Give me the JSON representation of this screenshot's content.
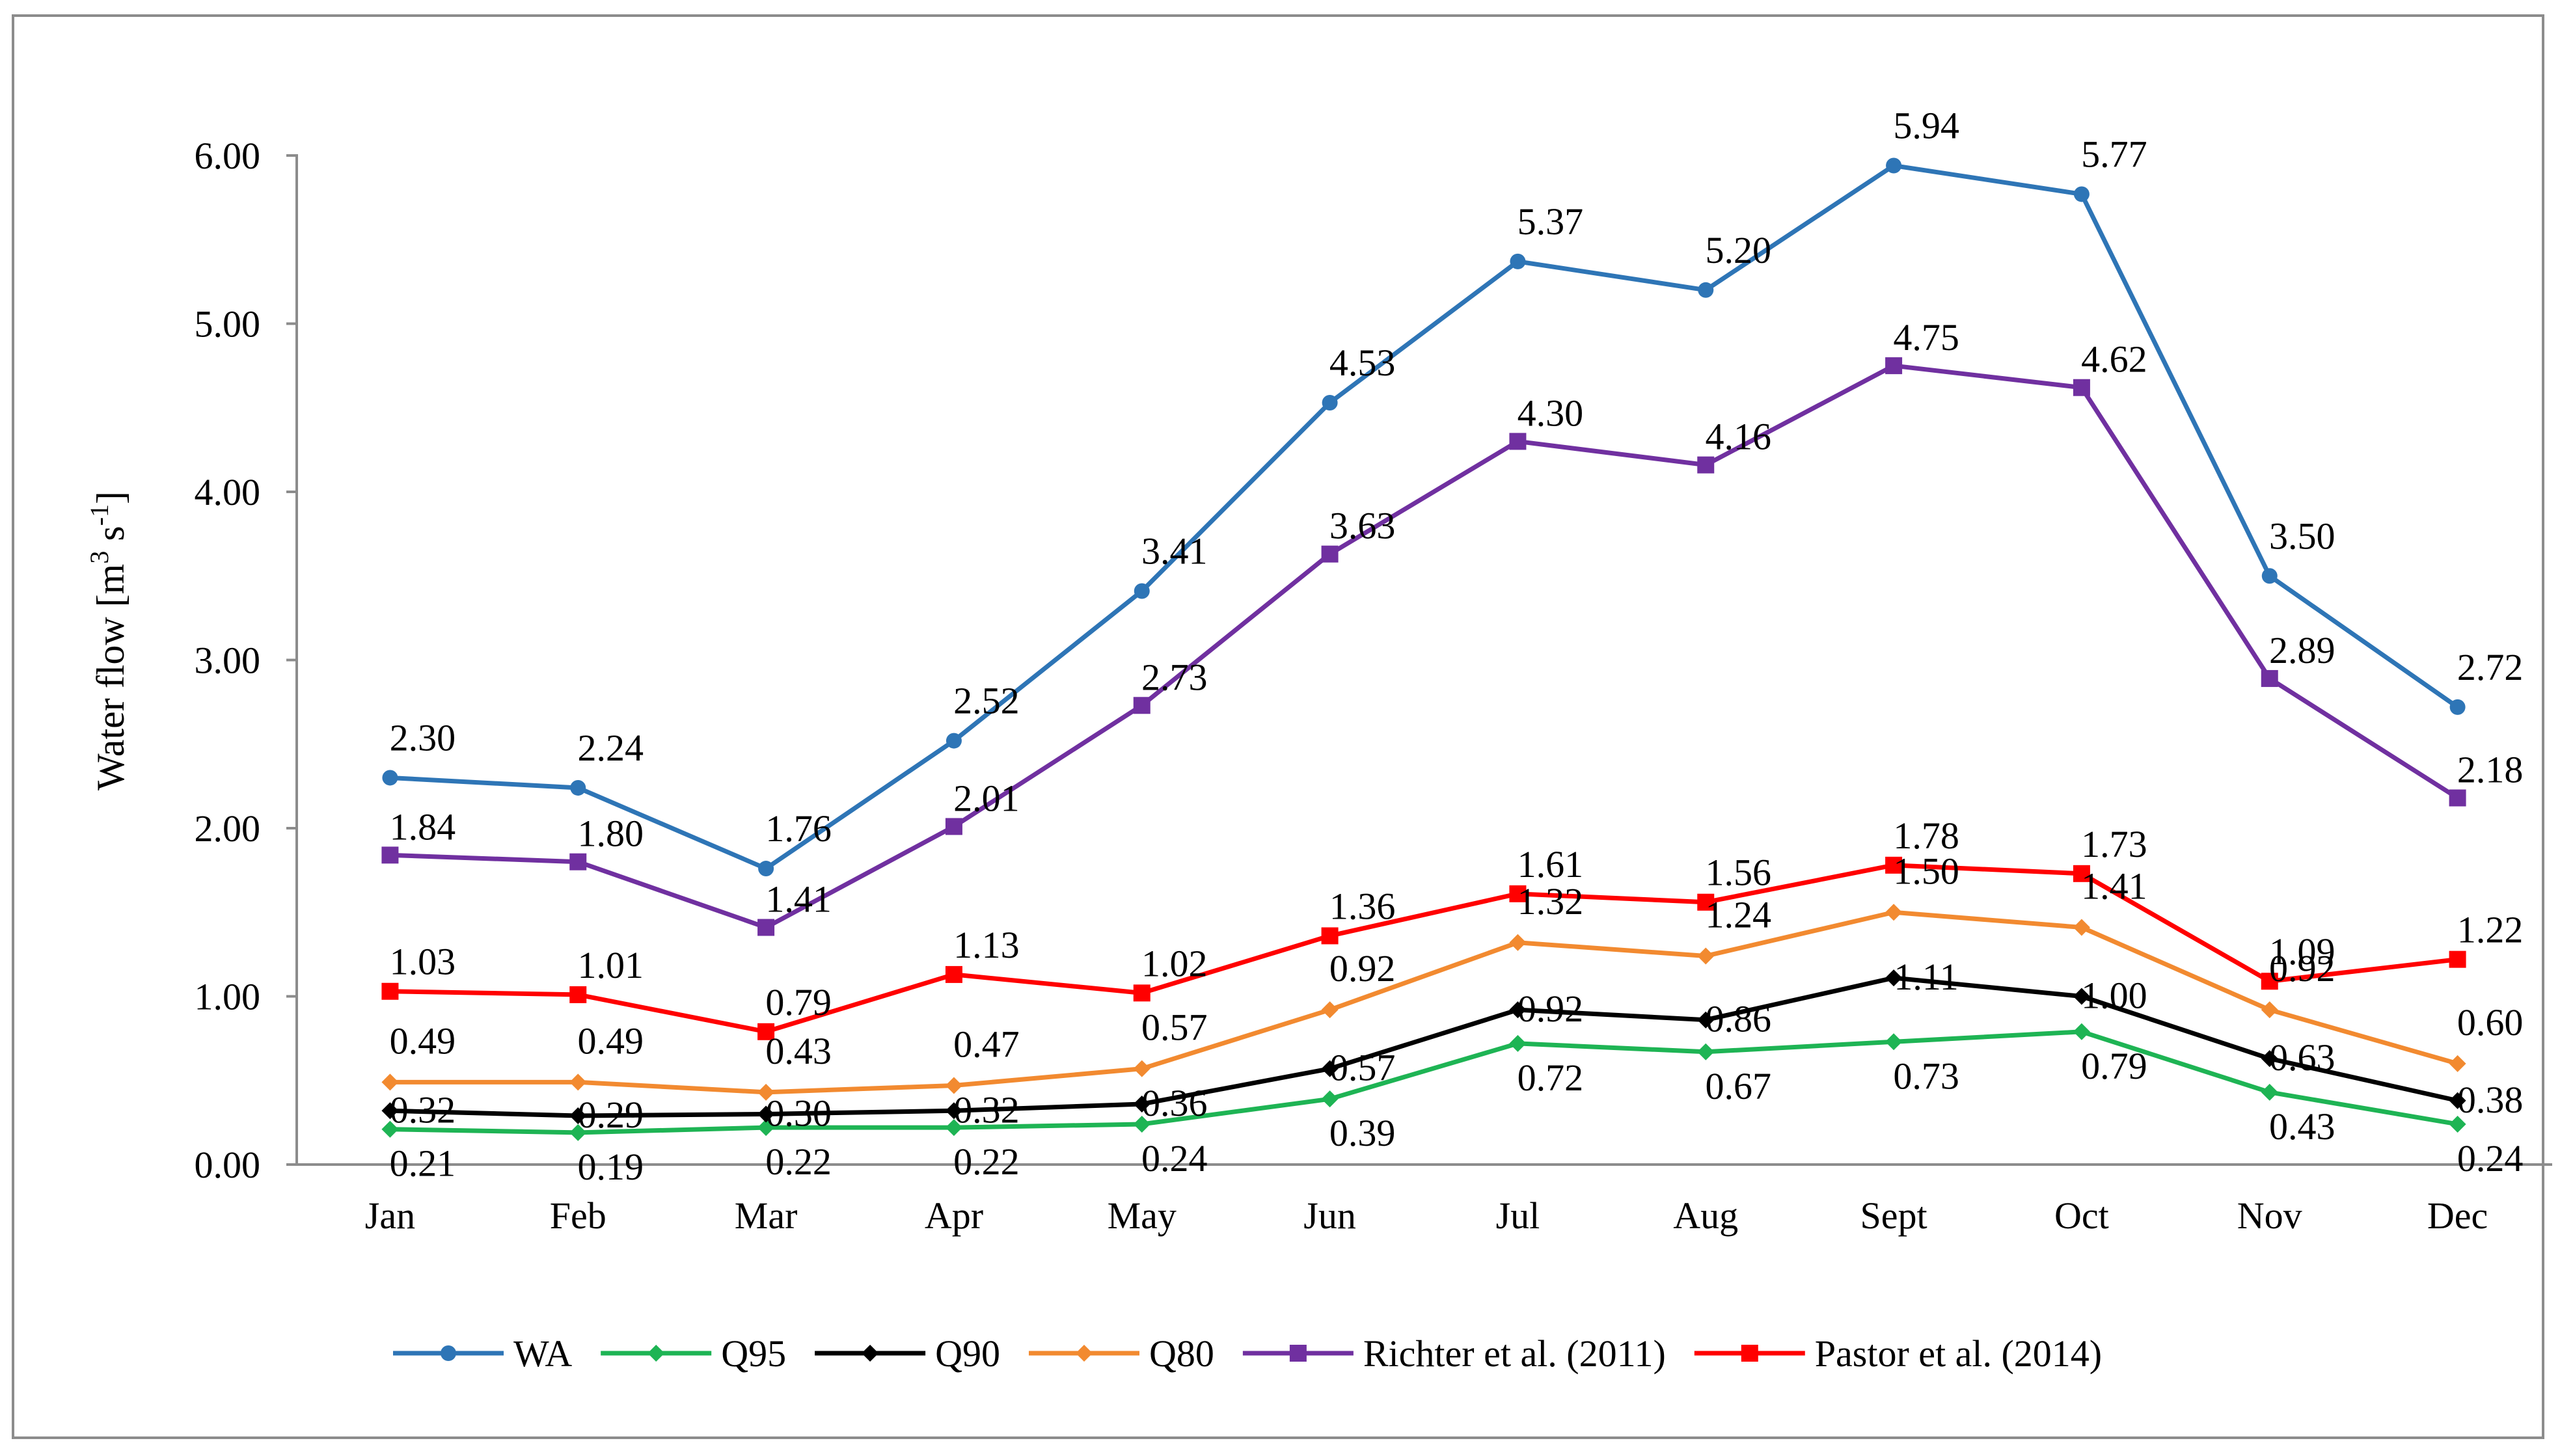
{
  "chart_data": {
    "type": "line",
    "title": "",
    "xlabel": "",
    "ylabel": "Water flow  [m3 s-1]",
    "ylabel_parts": {
      "main": "Water flow  [m",
      "sup1": "3",
      "mid": " s",
      "sup2": "-1",
      "end": "]"
    },
    "ylim": [
      0,
      6
    ],
    "yticks": [
      "0.00",
      "1.00",
      "2.00",
      "3.00",
      "4.00",
      "5.00",
      "6.00"
    ],
    "categories": [
      "Jan",
      "Feb",
      "Mar",
      "Apr",
      "May",
      "Jun",
      "Jul",
      "Aug",
      "Sept",
      "Oct",
      "Nov",
      "Dec"
    ],
    "legend_position": "bottom",
    "series": [
      {
        "name": "WA",
        "color": "#2e75b6",
        "marker": "circle",
        "values": [
          2.3,
          2.24,
          1.76,
          2.52,
          3.41,
          4.53,
          5.37,
          5.2,
          5.94,
          5.77,
          3.5,
          2.72
        ],
        "labels": [
          "2.30",
          "2.24",
          "1.76",
          "2.52",
          "3.41",
          "4.53",
          "5.37",
          "5.20",
          "5.94",
          "5.77",
          "3.50",
          "2.72"
        ]
      },
      {
        "name": "Q95",
        "color": "#1eb454",
        "marker": "diamond",
        "values": [
          0.21,
          0.19,
          0.22,
          0.22,
          0.24,
          0.39,
          0.72,
          0.67,
          0.73,
          0.79,
          0.43,
          0.24
        ],
        "labels": [
          "0.21",
          "0.19",
          "0.22",
          "0.22",
          "0.24",
          "0.39",
          "0.72",
          "0.67",
          "0.73",
          "0.79",
          "0.43",
          "0.24"
        ]
      },
      {
        "name": "Q90",
        "color": "#000000",
        "marker": "diamond",
        "values": [
          0.32,
          0.29,
          0.3,
          0.32,
          0.36,
          0.57,
          0.92,
          0.86,
          1.11,
          1.0,
          0.63,
          0.38
        ],
        "labels": [
          "0.32",
          "0.29",
          "0.30",
          "0.32",
          "0.36",
          "0.57",
          "0.92",
          "0.86",
          "1.11",
          "1.00",
          "0.63",
          "0.38"
        ]
      },
      {
        "name": "Q80",
        "color": "#f28a30",
        "marker": "diamond",
        "values": [
          0.49,
          0.49,
          0.43,
          0.47,
          0.57,
          0.92,
          1.32,
          1.24,
          1.5,
          1.41,
          0.92,
          0.6
        ],
        "labels": [
          "0.49",
          "0.49",
          "0.43",
          "0.47",
          "0.57",
          "0.92",
          "1.32",
          "1.24",
          "1.50",
          "1.41",
          "0.92",
          "0.60"
        ]
      },
      {
        "name": "Richter et al. (2011)",
        "color": "#7030a0",
        "marker": "square",
        "values": [
          1.84,
          1.8,
          1.41,
          2.01,
          2.73,
          3.63,
          4.3,
          4.16,
          4.75,
          4.62,
          2.89,
          2.18
        ],
        "labels": [
          "1.84",
          "1.80",
          "1.41",
          "2.01",
          "2.73",
          "3.63",
          "4.30",
          "4.16",
          "4.75",
          "4.62",
          "2.89",
          "2.18"
        ]
      },
      {
        "name": "Pastor et al. (2014)",
        "color": "#ff0000",
        "marker": "square",
        "values": [
          1.03,
          1.01,
          0.79,
          1.13,
          1.02,
          1.36,
          1.61,
          1.56,
          1.78,
          1.73,
          1.09,
          1.22
        ],
        "labels": [
          "1.03",
          "1.01",
          "0.79",
          "1.13",
          "1.02",
          "1.36",
          "1.61",
          "1.56",
          "1.78",
          "1.73",
          "1.09",
          "1.22"
        ]
      }
    ]
  }
}
